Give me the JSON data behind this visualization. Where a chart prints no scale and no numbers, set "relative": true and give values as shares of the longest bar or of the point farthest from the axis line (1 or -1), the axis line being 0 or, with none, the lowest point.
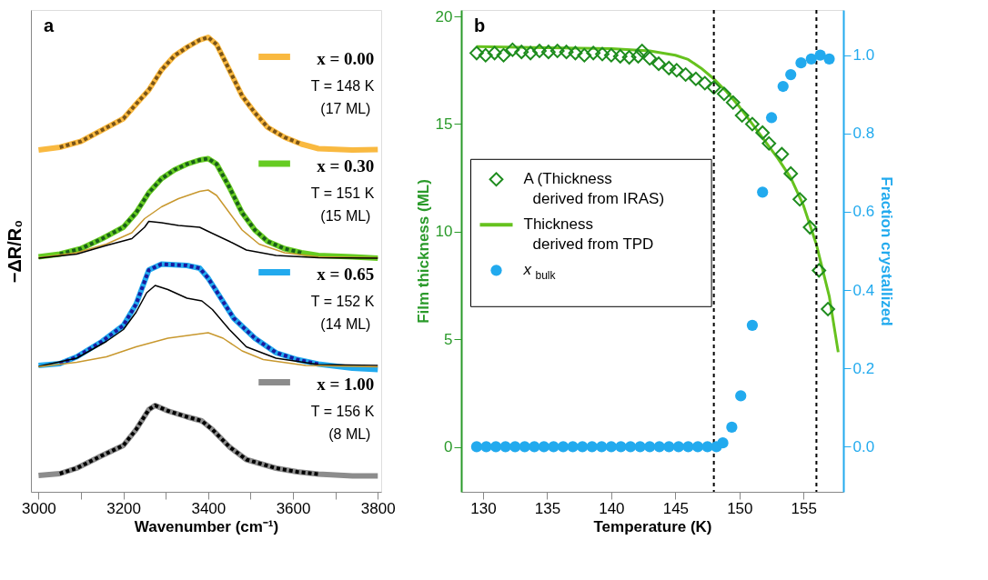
{
  "chart_data": [
    {
      "type": "line",
      "title": "a",
      "xlabel": "Wavenumber (cm⁻¹)",
      "ylabel": "−ΔR/R₀",
      "relative": true,
      "xlim": [
        2982,
        3808
      ],
      "xticks": [
        3000,
        {
          "value": 3100,
          "label": null
        },
        3200,
        {
          "value": 3300,
          "label": null
        },
        3400,
        {
          "value": 3500,
          "label": null
        },
        3600,
        {
          "value": 3700,
          "label": null
        },
        3800
      ],
      "grid": false,
      "legend": "right",
      "annotations": [
        "T = 148 K",
        "(17 ML)",
        "T = 151 K",
        "(15 ML)",
        "T = 152 K",
        "(14 ML)",
        "T = 156 K",
        "(8 ML)"
      ],
      "series": [
        {
          "name": "x = 0.00",
          "color": "#f9b940",
          "x": [
            3000,
            3050,
            3100,
            3150,
            3200,
            3230,
            3260,
            3290,
            3320,
            3350,
            3380,
            3400,
            3420,
            3450,
            3480,
            3510,
            3540,
            3580,
            3620,
            3660,
            3740,
            3800
          ],
          "values": [
            0.752,
            0.758,
            0.771,
            0.796,
            0.821,
            0.853,
            0.884,
            0.928,
            0.959,
            0.978,
            0.994,
            1.0,
            0.984,
            0.928,
            0.871,
            0.834,
            0.802,
            0.78,
            0.765,
            0.755,
            0.752,
            0.753
          ]
        },
        {
          "color": "#7a5418",
          "line_style": "dotted",
          "x": [
            3050,
            3100,
            3150,
            3200,
            3230,
            3260,
            3290,
            3320,
            3350,
            3380,
            3400,
            3420,
            3450,
            3480,
            3510,
            3540,
            3580,
            3620
          ],
          "values": [
            0.758,
            0.771,
            0.796,
            0.821,
            0.853,
            0.884,
            0.928,
            0.959,
            0.978,
            0.994,
            1.0,
            0.984,
            0.928,
            0.871,
            0.834,
            0.802,
            0.78,
            0.765
          ]
        },
        {
          "name": "x = 0.30",
          "color": "#66cc22",
          "x": [
            3000,
            3050,
            3100,
            3150,
            3200,
            3230,
            3260,
            3290,
            3320,
            3350,
            3380,
            3400,
            3420,
            3450,
            3480,
            3510,
            3540,
            3580,
            3620,
            3660,
            3740,
            3800
          ],
          "values": [
            0.517,
            0.523,
            0.535,
            0.557,
            0.582,
            0.614,
            0.658,
            0.689,
            0.708,
            0.721,
            0.73,
            0.733,
            0.721,
            0.67,
            0.614,
            0.576,
            0.551,
            0.535,
            0.526,
            0.52,
            0.517,
            0.514
          ]
        },
        {
          "color": "#1a5e1a",
          "line_style": "dotted",
          "x": [
            3050,
            3100,
            3150,
            3200,
            3230,
            3260,
            3290,
            3320,
            3350,
            3380,
            3400,
            3420,
            3450,
            3480,
            3510,
            3540,
            3580,
            3620
          ],
          "values": [
            0.523,
            0.535,
            0.557,
            0.582,
            0.614,
            0.658,
            0.689,
            0.708,
            0.721,
            0.73,
            0.733,
            0.721,
            0.67,
            0.614,
            0.576,
            0.551,
            0.535,
            0.526
          ]
        },
        {
          "color": "#c8982e",
          "x": [
            3000,
            3090,
            3160,
            3220,
            3250,
            3290,
            3330,
            3380,
            3400,
            3420,
            3450,
            3480,
            3520,
            3580,
            3660,
            3800
          ],
          "values": [
            0.515,
            0.526,
            0.545,
            0.57,
            0.601,
            0.627,
            0.645,
            0.661,
            0.664,
            0.652,
            0.614,
            0.576,
            0.545,
            0.526,
            0.517,
            0.515
          ]
        },
        {
          "color": "#000000",
          "x": [
            3000,
            3090,
            3160,
            3220,
            3250,
            3260,
            3290,
            3330,
            3380,
            3400,
            3450,
            3490,
            3560,
            3660,
            3800
          ],
          "values": [
            0.514,
            0.523,
            0.542,
            0.557,
            0.582,
            0.595,
            0.592,
            0.586,
            0.582,
            0.573,
            0.551,
            0.532,
            0.52,
            0.515,
            0.514
          ]
        },
        {
          "name": "x = 0.65",
          "color": "#22aaee",
          "x": [
            3000,
            3050,
            3090,
            3150,
            3200,
            3230,
            3260,
            3290,
            3350,
            3380,
            3400,
            3430,
            3460,
            3510,
            3560,
            3610,
            3660,
            3740,
            3800
          ],
          "values": [
            0.278,
            0.282,
            0.297,
            0.331,
            0.366,
            0.413,
            0.488,
            0.501,
            0.498,
            0.492,
            0.47,
            0.426,
            0.382,
            0.338,
            0.306,
            0.291,
            0.281,
            0.272,
            0.269
          ]
        },
        {
          "color": "#1a1aa0",
          "line_style": "dotted",
          "x": [
            3050,
            3090,
            3150,
            3200,
            3230,
            3260,
            3290,
            3350,
            3380,
            3400,
            3430,
            3460,
            3510,
            3560,
            3610,
            3660
          ],
          "values": [
            0.282,
            0.297,
            0.331,
            0.366,
            0.413,
            0.488,
            0.501,
            0.498,
            0.492,
            0.47,
            0.426,
            0.382,
            0.338,
            0.306,
            0.291,
            0.281
          ]
        },
        {
          "color": "#000000",
          "x": [
            3000,
            3090,
            3160,
            3200,
            3230,
            3255,
            3275,
            3305,
            3350,
            3385,
            3410,
            3450,
            3490,
            3560,
            3660,
            3800
          ],
          "values": [
            0.276,
            0.294,
            0.331,
            0.357,
            0.395,
            0.438,
            0.454,
            0.445,
            0.426,
            0.42,
            0.401,
            0.357,
            0.319,
            0.294,
            0.28,
            0.278
          ]
        },
        {
          "color": "#c8982e",
          "x": [
            3000,
            3090,
            3160,
            3230,
            3305,
            3360,
            3400,
            3435,
            3480,
            3530,
            3630,
            3800
          ],
          "values": [
            0.275,
            0.285,
            0.297,
            0.319,
            0.338,
            0.345,
            0.35,
            0.338,
            0.31,
            0.291,
            0.278,
            0.275
          ]
        },
        {
          "name": "x = 1.00",
          "color": "#8c8c8c",
          "x": [
            3000,
            3050,
            3090,
            3150,
            3200,
            3230,
            3260,
            3275,
            3305,
            3350,
            3385,
            3410,
            3450,
            3490,
            3560,
            3610,
            3660,
            3740,
            3800
          ],
          "values": [
            0.036,
            0.04,
            0.052,
            0.08,
            0.102,
            0.137,
            0.181,
            0.19,
            0.178,
            0.165,
            0.156,
            0.137,
            0.099,
            0.071,
            0.052,
            0.044,
            0.039,
            0.035,
            0.035
          ]
        },
        {
          "color": "#000000",
          "line_style": "dotted",
          "x": [
            3050,
            3090,
            3150,
            3200,
            3230,
            3260,
            3275,
            3305,
            3350,
            3385,
            3410,
            3450,
            3490,
            3560,
            3610,
            3660
          ],
          "values": [
            0.04,
            0.052,
            0.08,
            0.102,
            0.137,
            0.181,
            0.19,
            0.178,
            0.165,
            0.156,
            0.137,
            0.099,
            0.071,
            0.052,
            0.044,
            0.039
          ]
        }
      ]
    },
    {
      "type": "scatter",
      "title": "b",
      "xlabel": "Temperature (K)",
      "ylabel": "Film thickness (ML)",
      "y2label": "Fraction crystallized",
      "xlim": [
        128.3,
        158.1
      ],
      "xticks": [
        130,
        135,
        140,
        145,
        150,
        155
      ],
      "ylim": [
        -2.09,
        20.3
      ],
      "yticks": [
        0,
        5,
        10,
        15,
        20
      ],
      "y2lim": [
        -0.115,
        1.115
      ],
      "y2ticks": [
        {
          "value": 0,
          "label": "0.0"
        },
        {
          "value": 0.2,
          "label": "0.2"
        },
        {
          "value": 0.4,
          "label": "0.4"
        },
        {
          "value": 0.6,
          "label": "0.6"
        },
        {
          "value": 0.8,
          "label": "0.8"
        },
        {
          "value": 1,
          "label": "1.0"
        }
      ],
      "grid": false,
      "legend": "left",
      "ref_lines": [
        {
          "axis": "x",
          "value": 148,
          "color": "#000000",
          "line_style": "dashed"
        },
        {
          "axis": "x",
          "value": 156,
          "color": "#000000",
          "line_style": "dashed"
        }
      ],
      "series": [
        {
          "name": "Thickness derived from TPD",
          "type": "line",
          "color": "#66c21e",
          "marker": "none",
          "x": [
            129.5,
            135,
            140,
            143,
            145,
            146,
            147,
            148,
            149,
            150,
            151,
            152,
            153,
            154,
            155,
            156,
            157,
            157.7
          ],
          "values": [
            18.6,
            18.55,
            18.5,
            18.4,
            18.2,
            18.0,
            17.6,
            17.1,
            16.5,
            15.8,
            15.0,
            14.2,
            13.4,
            12.5,
            11.2,
            9.4,
            7.0,
            4.4
          ]
        },
        {
          "name": "A (Thickness derived from IRAS)",
          "type": "scatter",
          "color": "#1e8c1e",
          "marker": "diamond",
          "x": [
            129.5,
            130.2,
            130.9,
            131.6,
            132.3,
            133.0,
            133.7,
            134.4,
            135.1,
            135.8,
            136.5,
            137.2,
            137.9,
            138.6,
            139.3,
            140.0,
            140.7,
            141.4,
            142.1,
            142.4,
            143.0,
            143.7,
            144.5,
            145.1,
            145.8,
            146.6,
            147.3,
            148.0,
            148.8,
            149.5,
            150.2,
            151.0,
            151.8,
            152.3,
            153.3,
            154.0,
            154.7,
            155.5,
            156.2,
            156.9
          ],
          "values": [
            18.3,
            18.2,
            18.3,
            18.2,
            18.45,
            18.35,
            18.3,
            18.4,
            18.35,
            18.4,
            18.35,
            18.3,
            18.2,
            18.3,
            18.25,
            18.2,
            18.15,
            18.1,
            18.15,
            18.4,
            18.05,
            17.8,
            17.6,
            17.5,
            17.3,
            17.1,
            16.9,
            16.7,
            16.4,
            16.0,
            15.4,
            15.0,
            14.6,
            14.1,
            13.6,
            12.7,
            11.5,
            10.2,
            8.2,
            6.4
          ]
        },
        {
          "name": "x$_{bulk}$",
          "type": "scatter",
          "axis": "y2",
          "color": "#22aaee",
          "marker": "circle",
          "x": [
            129.5,
            130.25,
            131,
            131.75,
            132.5,
            133.25,
            134,
            134.75,
            135.5,
            136.25,
            137,
            137.75,
            138.5,
            139.25,
            140,
            140.75,
            141.5,
            142.25,
            143,
            143.75,
            144.5,
            145.25,
            146,
            146.75,
            147.5,
            148.2,
            148.7,
            149.4,
            150.1,
            151.0,
            151.8,
            152.5,
            153.4,
            154.0,
            154.8,
            155.6,
            156.3,
            157.0
          ],
          "values": [
            0,
            0,
            0,
            0,
            0,
            0,
            0,
            0,
            0,
            0,
            0,
            0,
            0,
            0,
            0,
            0,
            0,
            0,
            0,
            0,
            0,
            0,
            0,
            0,
            0,
            0,
            0.01,
            0.05,
            0.13,
            0.31,
            0.65,
            0.84,
            0.92,
            0.95,
            0.98,
            0.99,
            1.0,
            0.99
          ]
        }
      ]
    }
  ]
}
